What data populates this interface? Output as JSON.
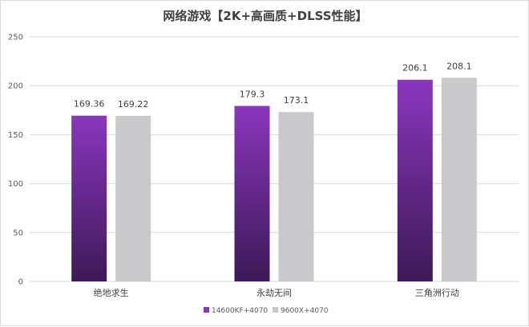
{
  "chart_data": {
    "type": "bar",
    "title": "网络游戏【2K+高画质+DLSS性能】",
    "xlabel": "",
    "ylabel": "",
    "categories": [
      "绝地求生",
      "永劫无间",
      "三角洲行动"
    ],
    "series": [
      {
        "name": "14600KF+4070",
        "values": [
          169.36,
          179.3,
          206.1
        ],
        "labels": [
          "169.36",
          "179.3",
          "206.1"
        ],
        "color_top": "#8a36bd",
        "color_bottom": "#3d1a57"
      },
      {
        "name": "9600X+4070",
        "values": [
          169.22,
          173.1,
          208.1
        ],
        "labels": [
          "169.22",
          "173.1",
          "208.1"
        ],
        "color_top": "#c9c9cc",
        "color_bottom": "#c9c9cc"
      }
    ],
    "ylim": [
      0,
      250
    ],
    "yticks": [
      0,
      50,
      100,
      150,
      200,
      250
    ],
    "grid": true,
    "legend_position": "bottom",
    "gridline_color": "#d9d9d9"
  }
}
